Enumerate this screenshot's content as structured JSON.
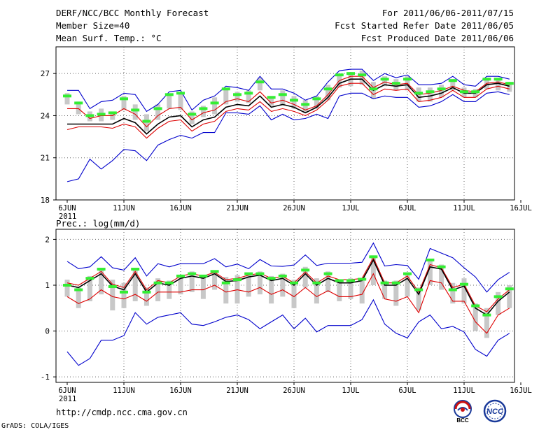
{
  "header": {
    "title": "DERF/NCC/BCC Monthly Forecast",
    "member_size": "Member Size=40",
    "variable": "Mean Surf. Temp.: °C",
    "period": "For 2011/06/06-2011/07/15",
    "started": "Fcst Started Refer Date 2011/06/05",
    "produced": "Fcst Produced Date 2011/06/06"
  },
  "footer": {
    "url": "http://cmdp.ncc.cma.gov.cn",
    "grads": "GrADS: COLA/IGES",
    "logo_bcc": "BCC",
    "logo_ncc": "NCC"
  },
  "colors": {
    "envelope": "#0000cc",
    "spread": "#dd0000",
    "mean": "#000000",
    "box": "#c8c8c8",
    "marker": "#33ee33"
  },
  "chart_data": [
    {
      "type": "line",
      "title": "Mean Surf. Temp.: °C",
      "x_tick_labels": [
        "6JUN",
        "11JUN",
        "16JUN",
        "21JUN",
        "26JUN",
        "1JUL",
        "6JUL",
        "11JUL",
        "16JUL"
      ],
      "x_year_label": "2011",
      "ylim": [
        18,
        28.9
      ],
      "yticks": [
        18,
        21,
        24,
        27
      ],
      "grid": true,
      "series": [
        {
          "name": "max",
          "values": [
            25.8,
            25.8,
            24.5,
            25.0,
            25.1,
            25.6,
            25.5,
            24.3,
            24.8,
            25.7,
            25.8,
            24.4,
            25.1,
            25.4,
            26.1,
            26.0,
            25.8,
            26.8,
            25.9,
            25.9,
            25.6,
            25.1,
            25.4,
            26.4,
            27.2,
            27.3,
            27.3,
            26.5,
            27.0,
            26.7,
            26.9,
            26.2,
            26.2,
            26.3,
            26.8,
            26.2,
            26.1,
            26.8,
            26.8,
            26.6
          ]
        },
        {
          "name": "upper",
          "values": [
            24.5,
            24.5,
            23.8,
            24.0,
            24.0,
            24.5,
            24.1,
            23.2,
            24.0,
            24.5,
            24.6,
            23.7,
            24.2,
            24.4,
            25.0,
            25.2,
            25.0,
            25.7,
            24.9,
            25.1,
            24.8,
            24.4,
            24.7,
            25.5,
            26.5,
            26.8,
            26.8,
            26.0,
            26.4,
            26.2,
            26.3,
            25.5,
            25.6,
            25.8,
            26.1,
            25.8,
            25.7,
            26.3,
            26.4,
            26.2
          ]
        },
        {
          "name": "mean",
          "values": [
            23.4,
            23.4,
            23.4,
            23.4,
            23.4,
            23.8,
            23.5,
            22.7,
            23.4,
            23.9,
            24.0,
            23.2,
            23.7,
            23.9,
            24.6,
            24.8,
            24.7,
            25.4,
            24.6,
            24.8,
            24.6,
            24.2,
            24.6,
            25.3,
            26.3,
            26.6,
            26.6,
            25.8,
            26.2,
            26.1,
            26.2,
            25.3,
            25.4,
            25.6,
            26.0,
            25.6,
            25.6,
            26.2,
            26.3,
            26.1
          ]
        },
        {
          "name": "lower",
          "values": [
            23.0,
            23.2,
            23.2,
            23.2,
            23.1,
            23.4,
            23.2,
            22.4,
            23.1,
            23.6,
            23.7,
            22.9,
            23.4,
            23.6,
            24.3,
            24.5,
            24.4,
            25.0,
            24.3,
            24.5,
            24.3,
            24.0,
            24.4,
            25.1,
            26.1,
            26.3,
            26.3,
            25.5,
            25.9,
            25.8,
            25.9,
            25.0,
            25.1,
            25.3,
            25.8,
            25.3,
            25.3,
            25.9,
            26.1,
            25.9
          ]
        },
        {
          "name": "min",
          "values": [
            19.3,
            19.5,
            20.9,
            20.2,
            20.8,
            21.6,
            21.5,
            20.8,
            21.9,
            22.3,
            22.6,
            22.4,
            22.8,
            22.8,
            24.2,
            24.2,
            24.1,
            24.7,
            23.7,
            24.1,
            23.7,
            23.8,
            24.1,
            23.8,
            25.4,
            25.6,
            25.6,
            25.2,
            25.4,
            25.3,
            25.3,
            24.6,
            24.7,
            25.0,
            25.5,
            25.0,
            25.0,
            25.6,
            25.7,
            25.5
          ]
        },
        {
          "name": "box_top",
          "values": [
            25.6,
            25.0,
            24.3,
            24.5,
            24.3,
            25.4,
            24.8,
            24.1,
            24.8,
            25.5,
            25.6,
            24.3,
            24.7,
            25.3,
            25.9,
            25.7,
            25.8,
            26.7,
            25.4,
            25.8,
            25.4,
            25.1,
            25.4,
            26.2,
            27.0,
            27.0,
            27.2,
            26.4,
            26.8,
            26.6,
            26.8,
            26.0,
            26.0,
            26.2,
            26.6,
            26.0,
            25.9,
            26.7,
            26.6,
            26.4
          ]
        },
        {
          "name": "box_bottom",
          "values": [
            24.8,
            24.1,
            23.6,
            23.6,
            23.7,
            24.4,
            23.7,
            22.9,
            23.7,
            24.5,
            24.4,
            23.4,
            23.9,
            24.1,
            24.8,
            25.0,
            24.9,
            25.8,
            24.7,
            24.7,
            24.5,
            24.2,
            24.5,
            25.1,
            26.0,
            26.1,
            26.2,
            25.2,
            26.1,
            25.8,
            25.8,
            25.0,
            25.0,
            25.3,
            25.8,
            25.3,
            25.3,
            25.9,
            25.8,
            25.7
          ]
        },
        {
          "name": "marker",
          "values": [
            25.4,
            24.9,
            24.0,
            24.1,
            24.2,
            25.2,
            24.4,
            23.6,
            24.5,
            25.5,
            25.6,
            24.1,
            24.5,
            24.9,
            25.9,
            25.5,
            25.6,
            26.4,
            25.3,
            25.5,
            25.1,
            24.8,
            25.2,
            25.9,
            26.9,
            27.0,
            26.9,
            25.9,
            26.6,
            26.3,
            26.6,
            25.6,
            25.7,
            25.9,
            26.5,
            25.7,
            25.7,
            26.6,
            26.6,
            26.3
          ]
        }
      ]
    },
    {
      "type": "line",
      "title": "Prec.: log(mm/d)",
      "x_tick_labels": [
        "6JUN",
        "11JUN",
        "16JUN",
        "21JUN",
        "26JUN",
        "1JUL",
        "6JUL",
        "11JUL",
        "16JUL"
      ],
      "x_year_label": "2011",
      "ylim": [
        -1.12,
        2.22
      ],
      "yticks": [
        -1,
        0,
        1,
        2
      ],
      "grid": true,
      "series": [
        {
          "name": "max",
          "values": [
            1.52,
            1.36,
            1.4,
            1.62,
            1.38,
            1.33,
            1.6,
            1.2,
            1.47,
            1.4,
            1.47,
            1.47,
            1.47,
            1.58,
            1.4,
            1.46,
            1.36,
            1.56,
            1.42,
            1.41,
            1.44,
            1.66,
            1.43,
            1.48,
            1.48,
            1.48,
            1.5,
            1.92,
            1.42,
            1.45,
            1.43,
            1.13,
            1.8,
            1.7,
            1.6,
            1.38,
            1.18,
            0.85,
            1.12,
            1.28
          ]
        },
        {
          "name": "upper",
          "values": [
            1.05,
            1.0,
            1.15,
            1.3,
            1.02,
            0.95,
            1.3,
            0.9,
            1.1,
            1.05,
            1.2,
            1.25,
            1.2,
            1.28,
            1.12,
            1.15,
            1.22,
            1.26,
            1.15,
            1.19,
            1.05,
            1.29,
            1.05,
            1.2,
            1.12,
            1.12,
            1.15,
            1.6,
            1.05,
            1.05,
            1.2,
            0.85,
            1.45,
            1.38,
            0.95,
            1.02,
            0.55,
            0.42,
            0.7,
            0.9
          ]
        },
        {
          "name": "mean",
          "values": [
            1.0,
            0.95,
            1.1,
            1.25,
            0.98,
            0.9,
            1.25,
            0.85,
            1.05,
            1.0,
            1.15,
            1.2,
            1.15,
            1.25,
            1.08,
            1.1,
            1.18,
            1.22,
            1.1,
            1.15,
            1.0,
            1.25,
            1.0,
            1.15,
            1.05,
            1.05,
            1.1,
            1.55,
            1.0,
            1.0,
            1.15,
            0.8,
            1.4,
            1.35,
            0.9,
            0.98,
            0.5,
            0.35,
            0.65,
            0.85
          ]
        },
        {
          "name": "lower",
          "values": [
            0.75,
            0.6,
            0.7,
            0.9,
            0.75,
            0.7,
            0.8,
            0.65,
            0.85,
            0.85,
            0.85,
            0.9,
            0.9,
            1.0,
            0.85,
            0.9,
            0.85,
            0.95,
            0.8,
            0.9,
            0.75,
            0.95,
            0.75,
            0.88,
            0.75,
            0.75,
            0.8,
            1.25,
            0.7,
            0.65,
            0.75,
            0.4,
            1.1,
            1.05,
            0.65,
            0.65,
            0.2,
            -0.05,
            0.35,
            0.5
          ]
        },
        {
          "name": "min",
          "values": [
            -0.45,
            -0.75,
            -0.6,
            -0.2,
            -0.2,
            -0.1,
            0.4,
            0.15,
            0.3,
            0.35,
            0.4,
            0.15,
            0.12,
            0.2,
            0.3,
            0.35,
            0.25,
            0.05,
            0.2,
            0.35,
            0.05,
            0.28,
            -0.02,
            0.12,
            0.12,
            0.12,
            0.25,
            0.68,
            0.15,
            -0.05,
            -0.15,
            0.2,
            0.35,
            0.05,
            0.1,
            -0.02,
            -0.4,
            -0.55,
            -0.2,
            -0.05
          ]
        },
        {
          "name": "box_top",
          "values": [
            1.12,
            0.95,
            1.2,
            1.35,
            1.12,
            1.05,
            1.35,
            0.95,
            1.15,
            1.1,
            1.2,
            1.3,
            1.22,
            1.3,
            1.18,
            1.22,
            1.25,
            1.3,
            1.2,
            1.25,
            1.12,
            1.4,
            1.15,
            1.3,
            1.1,
            1.15,
            1.15,
            1.65,
            1.1,
            1.1,
            1.28,
            0.95,
            1.55,
            1.45,
            1.05,
            1.15,
            0.6,
            0.5,
            0.85,
            1.0
          ]
        },
        {
          "name": "box_bottom",
          "values": [
            0.75,
            0.5,
            0.65,
            0.8,
            0.45,
            0.5,
            0.65,
            0.55,
            0.65,
            0.7,
            0.8,
            0.85,
            0.7,
            0.9,
            0.6,
            0.6,
            0.75,
            0.8,
            0.6,
            0.75,
            0.5,
            0.95,
            0.6,
            0.85,
            0.65,
            0.7,
            0.6,
            1.0,
            0.7,
            0.55,
            0.75,
            0.45,
            1.0,
            0.9,
            0.6,
            0.6,
            0.0,
            -0.15,
            0.35,
            0.5
          ]
        },
        {
          "name": "marker",
          "values": [
            1.0,
            0.9,
            1.15,
            1.35,
            0.97,
            0.85,
            1.35,
            0.85,
            1.05,
            1.05,
            1.2,
            1.25,
            1.2,
            1.3,
            1.05,
            1.12,
            1.25,
            1.25,
            1.15,
            1.2,
            1.05,
            1.33,
            1.05,
            1.25,
            1.1,
            1.1,
            1.13,
            1.62,
            1.05,
            1.05,
            1.25,
            0.9,
            1.55,
            1.4,
            0.9,
            1.02,
            0.55,
            0.35,
            0.75,
            0.92
          ]
        }
      ]
    }
  ]
}
